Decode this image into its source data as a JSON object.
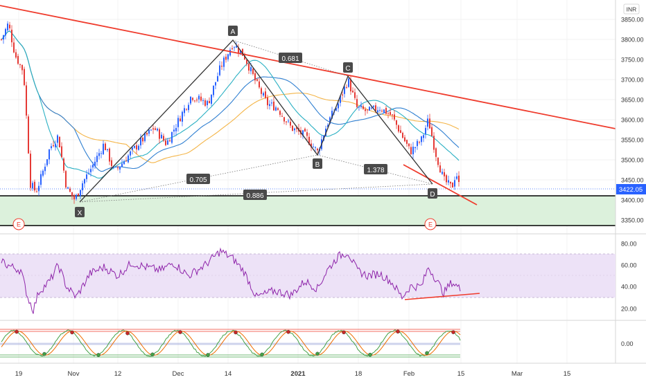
{
  "currency": "INR",
  "colors": {
    "up": "#2962ff",
    "down": "#e53935",
    "trend": "#ef3b2c",
    "harmonic": "#333333",
    "rsi": "#8e24aa",
    "rsi_band": "#e9dcf5",
    "zone": "#dcf1dc",
    "sma_blue": "#2f7fd1",
    "sma_teal": "#2ab0c3",
    "sma_orange": "#f4b446",
    "last_price_bg": "#2962ff"
  },
  "price_axis": {
    "ticks": [
      "3850.00",
      "3800.00",
      "3750.00",
      "3700.00",
      "3650.00",
      "3600.00",
      "3550.00",
      "3500.00",
      "3450.00",
      "3400.00",
      "3350.00"
    ]
  },
  "last_price": "3422.05",
  "rsi_axis": {
    "ticks": [
      "80.00",
      "60.00",
      "40.00",
      "20.00"
    ]
  },
  "stoch_axis": {
    "ticks": [
      "0.00"
    ]
  },
  "time_axis": {
    "labels": [
      "19",
      "Nov",
      "12",
      "Dec",
      "14",
      "2021",
      "18",
      "Feb",
      "15",
      "Mar",
      "15"
    ]
  },
  "chart_data": [
    {
      "type": "candlestick",
      "name": "price",
      "y_range": [
        3325,
        3875
      ],
      "levels": [
        3410,
        3342
      ],
      "harmonic_points": [
        {
          "label": "X",
          "t": "Nov 2",
          "price": 3390
        },
        {
          "label": "A",
          "t": "Dec 14",
          "price": 3800
        },
        {
          "label": "B",
          "t": "Jan 7",
          "price": 3510
        },
        {
          "label": "C",
          "t": "Jan 14",
          "price": 3705
        },
        {
          "label": "D",
          "t": "Feb 12",
          "price": 3410
        }
      ],
      "ratios": [
        "0.681",
        "1.378",
        "0.705",
        "0.886"
      ],
      "event_markers": [
        "E",
        "E"
      ]
    },
    {
      "type": "line",
      "name": "RSI",
      "y_range": [
        10,
        85
      ],
      "band": [
        30,
        70
      ],
      "current": 36
    },
    {
      "type": "line",
      "name": "stochastic",
      "levels": [
        "upper",
        "lower"
      ]
    }
  ]
}
